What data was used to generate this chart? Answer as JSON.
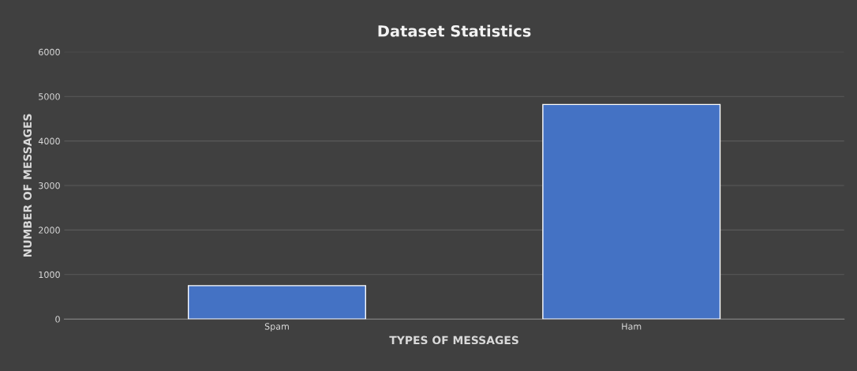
{
  "chart_data": {
    "type": "bar",
    "title": "Dataset Statistics",
    "xlabel": "TYPES OF MESSAGES",
    "ylabel": "NUMBER OF MESSAGES",
    "categories": [
      "Spam",
      "Ham"
    ],
    "values": [
      750,
      4820
    ],
    "color": "#4472c4",
    "ylim": [
      0,
      6000
    ],
    "yticks": [
      0,
      1000,
      2000,
      3000,
      4000,
      5000,
      6000
    ],
    "grid": "y"
  }
}
